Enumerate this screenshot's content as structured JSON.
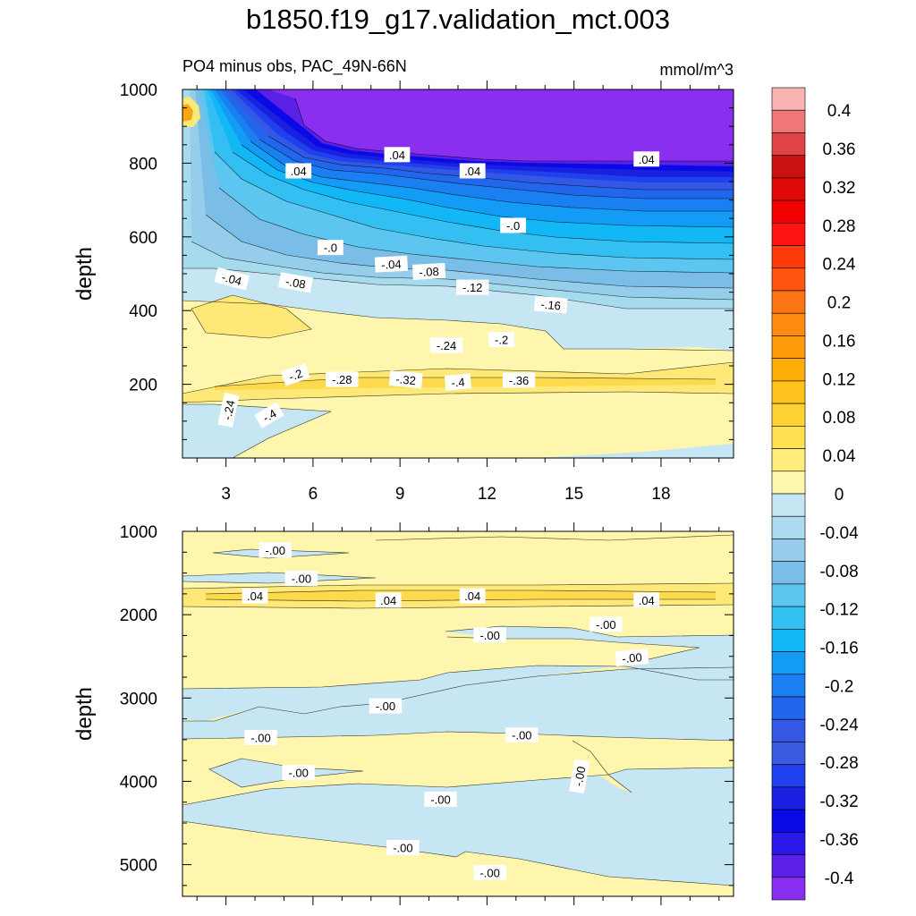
{
  "title": "b1850.f19_g17.validation_mct.003",
  "subtitle": "PO4 minus obs, PAC_49N-66N",
  "units": "mmol/m^3",
  "colors": {
    "purple": "#8a2ef0",
    "violet": "#6b24e6",
    "blue_dark": "#1010d8",
    "blue": "#2040ee",
    "blue_mid": "#1a66f2",
    "blue_light": "#128cf6",
    "cyan": "#10b4f6",
    "sky": "#5cc6f0",
    "light_blue": "#a6dbee",
    "pale_blue": "#c6e6f4",
    "pale_yellow": "#fef6ac",
    "yellow": "#fee878",
    "orange_yellow": "#fdcc3c",
    "orange": "#f9a616"
  },
  "colorbar": {
    "levels": [
      "0.4",
      "0.36",
      "0.32",
      "0.28",
      "0.24",
      "0.2",
      "0.16",
      "0.12",
      "0.08",
      "0.04",
      "0",
      "-0.04",
      "-0.08",
      "-0.12",
      "-0.16",
      "-0.2",
      "-0.24",
      "-0.28",
      "-0.32",
      "-0.36",
      "-0.4"
    ],
    "colors": [
      "#f9b3b3",
      "#ef7777",
      "#e04444",
      "#cc1111",
      "#e00808",
      "#f20000",
      "#ff1414",
      "#ff3a0c",
      "#ff5510",
      "#ff7414",
      "#ff8c10",
      "#ff9c0c",
      "#ffad08",
      "#ffc21c",
      "#fdd232",
      "#fee150",
      "#feec7c",
      "#fff7ac",
      "#c6e6f4",
      "#acdaee",
      "#96cdea",
      "#7abde6",
      "#5cc6f0",
      "#33bff2",
      "#12b8f6",
      "#129cf6",
      "#1a80f2",
      "#2266ec",
      "#3358e6",
      "#3a5ae0",
      "#2040ee",
      "#1a20e0",
      "#0a0ae6",
      "#2a18e8",
      "#5a20e6",
      "#8a2ef0"
    ]
  },
  "chart_data": [
    {
      "type": "contour",
      "panel": "upper",
      "xlabel": "",
      "ylabel": "depth",
      "xlim": [
        1.5,
        20.5
      ],
      "ylim": [
        1000,
        0
      ],
      "xticks": [
        "3",
        "6",
        "9",
        "12",
        "15",
        "18"
      ],
      "yticks": [
        "200",
        "400",
        "600",
        "800",
        "1000"
      ],
      "contour_labels": [
        {
          "text": "-.24",
          "x": 3.1,
          "y": 130,
          "rot": -78
        },
        {
          "text": "-.4",
          "x": 4.5,
          "y": 115,
          "rot": -30
        },
        {
          "text": "-.2",
          "x": 5.4,
          "y": 225,
          "rot": -20
        },
        {
          "text": "-.28",
          "x": 7.0,
          "y": 212,
          "rot": 0
        },
        {
          "text": "-.32",
          "x": 9.2,
          "y": 212,
          "rot": 5
        },
        {
          "text": "-.4",
          "x": 11.0,
          "y": 205,
          "rot": -5
        },
        {
          "text": "-.36",
          "x": 13.1,
          "y": 210,
          "rot": 0
        },
        {
          "text": "-.24",
          "x": 10.6,
          "y": 305,
          "rot": 0
        },
        {
          "text": "-.2",
          "x": 12.5,
          "y": 320,
          "rot": 0
        },
        {
          "text": "-.16",
          "x": 14.2,
          "y": 415,
          "rot": 5
        },
        {
          "text": "-.12",
          "x": 11.5,
          "y": 462,
          "rot": 0
        },
        {
          "text": "-.08",
          "x": 5.4,
          "y": 475,
          "rot": 10
        },
        {
          "text": "-.08",
          "x": 10.0,
          "y": 505,
          "rot": -3
        },
        {
          "text": "-.04",
          "x": 3.2,
          "y": 485,
          "rot": 15
        },
        {
          "text": "-.04",
          "x": 8.7,
          "y": 525,
          "rot": -3
        },
        {
          "text": "-.0",
          "x": 6.6,
          "y": 570,
          "rot": 0
        },
        {
          "text": "-.0",
          "x": 12.9,
          "y": 630,
          "rot": 0
        },
        {
          "text": ".04",
          "x": 5.5,
          "y": 778,
          "rot": 0
        },
        {
          "text": ".04",
          "x": 8.9,
          "y": 822,
          "rot": 0
        },
        {
          "text": ".04",
          "x": 11.5,
          "y": 778,
          "rot": 0
        },
        {
          "text": ".04",
          "x": 17.5,
          "y": 810,
          "rot": 0
        }
      ]
    },
    {
      "type": "contour",
      "panel": "lower",
      "xlabel": "",
      "ylabel": "depth",
      "xlim": [
        1.5,
        20.5
      ],
      "ylim": [
        1000,
        5380
      ],
      "xticks": [],
      "yticks": [
        "1000",
        "2000",
        "3000",
        "4000",
        "5000"
      ],
      "contour_labels": [
        {
          "text": "-.00",
          "x": 4.7,
          "y": 1230,
          "rot": 0
        },
        {
          "text": "-.00",
          "x": 5.6,
          "y": 1570,
          "rot": 0
        },
        {
          "text": ".04",
          "x": 4.0,
          "y": 1780,
          "rot": 0
        },
        {
          "text": ".04",
          "x": 8.6,
          "y": 1830,
          "rot": 0
        },
        {
          "text": ".04",
          "x": 11.5,
          "y": 1780,
          "rot": 0
        },
        {
          "text": ".04",
          "x": 17.5,
          "y": 1830,
          "rot": 0
        },
        {
          "text": "-.00",
          "x": 12.1,
          "y": 2250,
          "rot": 0
        },
        {
          "text": "-.00",
          "x": 16.1,
          "y": 2120,
          "rot": 0
        },
        {
          "text": "-.00",
          "x": 17.0,
          "y": 2520,
          "rot": -5
        },
        {
          "text": "-.00",
          "x": 8.5,
          "y": 3100,
          "rot": 0
        },
        {
          "text": "-.00",
          "x": 4.2,
          "y": 3480,
          "rot": 0
        },
        {
          "text": "-.00",
          "x": 13.2,
          "y": 3450,
          "rot": 0
        },
        {
          "text": "-.00",
          "x": 5.5,
          "y": 3900,
          "rot": 0
        },
        {
          "text": "-.00",
          "x": 15.2,
          "y": 3940,
          "rot": -80
        },
        {
          "text": "-.00",
          "x": 10.4,
          "y": 4220,
          "rot": 0
        },
        {
          "text": "-.00",
          "x": 9.1,
          "y": 4800,
          "rot": 0
        },
        {
          "text": "-.00",
          "x": 12.1,
          "y": 5100,
          "rot": 0
        }
      ]
    }
  ]
}
